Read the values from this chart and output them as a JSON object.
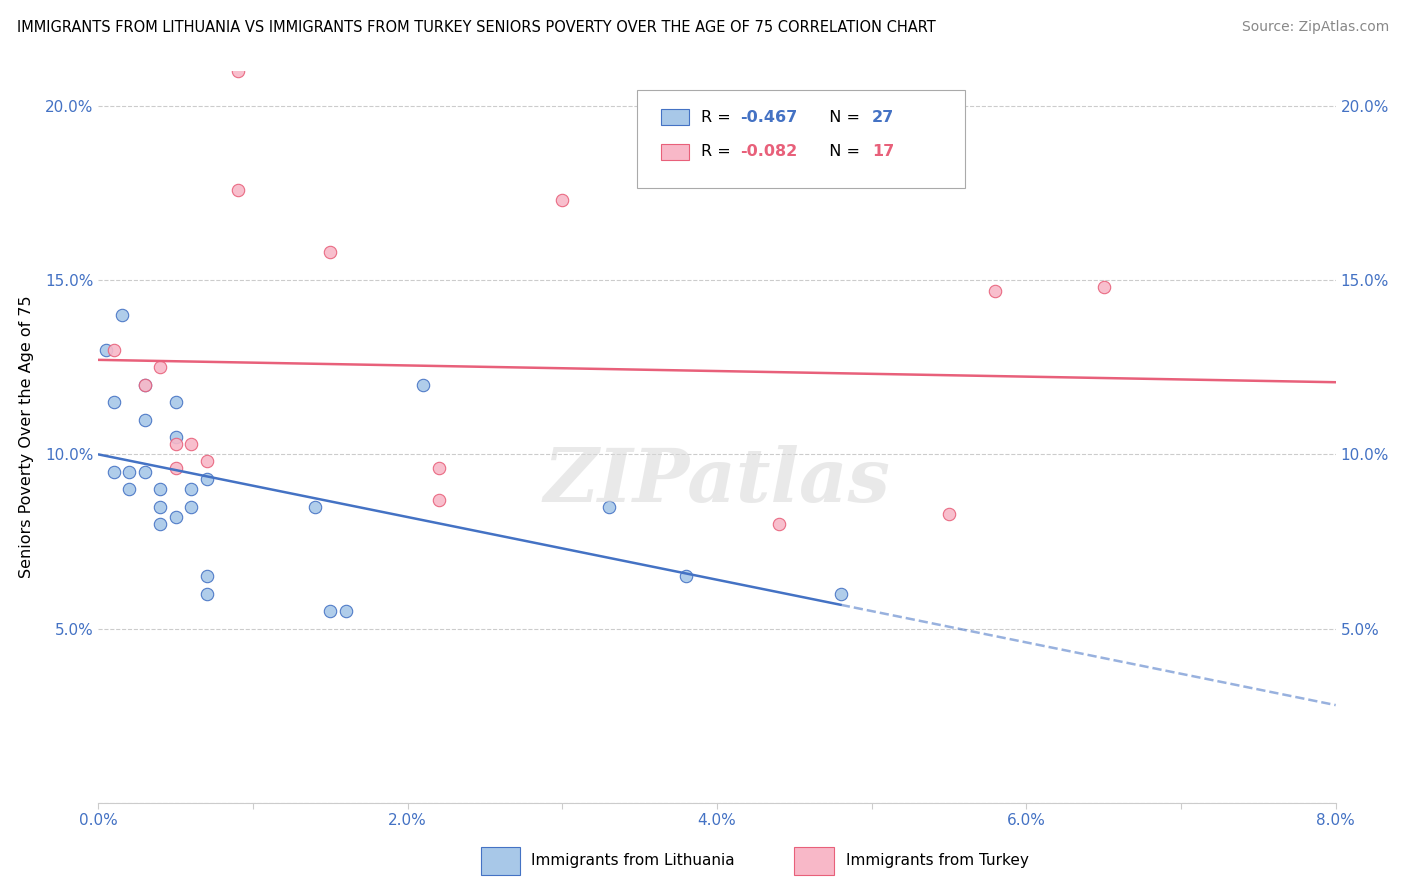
{
  "title": "IMMIGRANTS FROM LITHUANIA VS IMMIGRANTS FROM TURKEY SENIORS POVERTY OVER THE AGE OF 75 CORRELATION CHART",
  "source": "Source: ZipAtlas.com",
  "ylabel": "Seniors Poverty Over the Age of 75",
  "xmin": 0.0,
  "xmax": 0.08,
  "ymin": 0.0,
  "ymax": 0.21,
  "xtick_vals": [
    0.0,
    0.01,
    0.02,
    0.03,
    0.04,
    0.05,
    0.06,
    0.07,
    0.08
  ],
  "xticklabels": [
    "0.0%",
    "",
    "2.0%",
    "",
    "4.0%",
    "",
    "6.0%",
    "",
    "8.0%"
  ],
  "ytick_vals": [
    0.0,
    0.05,
    0.1,
    0.15,
    0.2
  ],
  "yticklabels": [
    "",
    "5.0%",
    "10.0%",
    "15.0%",
    "20.0%"
  ],
  "lithuania_color": "#a8c8e8",
  "turkey_color": "#f8b8c8",
  "line_blue": "#4472c4",
  "line_pink": "#e8607a",
  "watermark_text": "ZIPatlas",
  "legend_r_blue": "-0.467",
  "legend_n_blue": "27",
  "legend_r_pink": "-0.082",
  "legend_n_pink": "17",
  "lithuania_x": [
    0.0005,
    0.001,
    0.001,
    0.0015,
    0.002,
    0.002,
    0.003,
    0.003,
    0.003,
    0.004,
    0.004,
    0.004,
    0.005,
    0.005,
    0.005,
    0.006,
    0.006,
    0.007,
    0.007,
    0.007,
    0.014,
    0.015,
    0.016,
    0.021,
    0.033,
    0.038,
    0.048
  ],
  "lithuania_y": [
    0.13,
    0.115,
    0.095,
    0.14,
    0.095,
    0.09,
    0.12,
    0.11,
    0.095,
    0.09,
    0.085,
    0.08,
    0.115,
    0.105,
    0.082,
    0.09,
    0.085,
    0.093,
    0.065,
    0.06,
    0.085,
    0.055,
    0.055,
    0.12,
    0.085,
    0.065,
    0.06
  ],
  "turkey_x": [
    0.001,
    0.003,
    0.004,
    0.005,
    0.005,
    0.006,
    0.007,
    0.009,
    0.009,
    0.015,
    0.022,
    0.022,
    0.03,
    0.044,
    0.055,
    0.058,
    0.065
  ],
  "turkey_y": [
    0.13,
    0.12,
    0.125,
    0.103,
    0.096,
    0.103,
    0.098,
    0.21,
    0.176,
    0.158,
    0.096,
    0.087,
    0.173,
    0.08,
    0.083,
    0.147,
    0.148
  ],
  "marker_size": 80,
  "line_width": 1.8
}
